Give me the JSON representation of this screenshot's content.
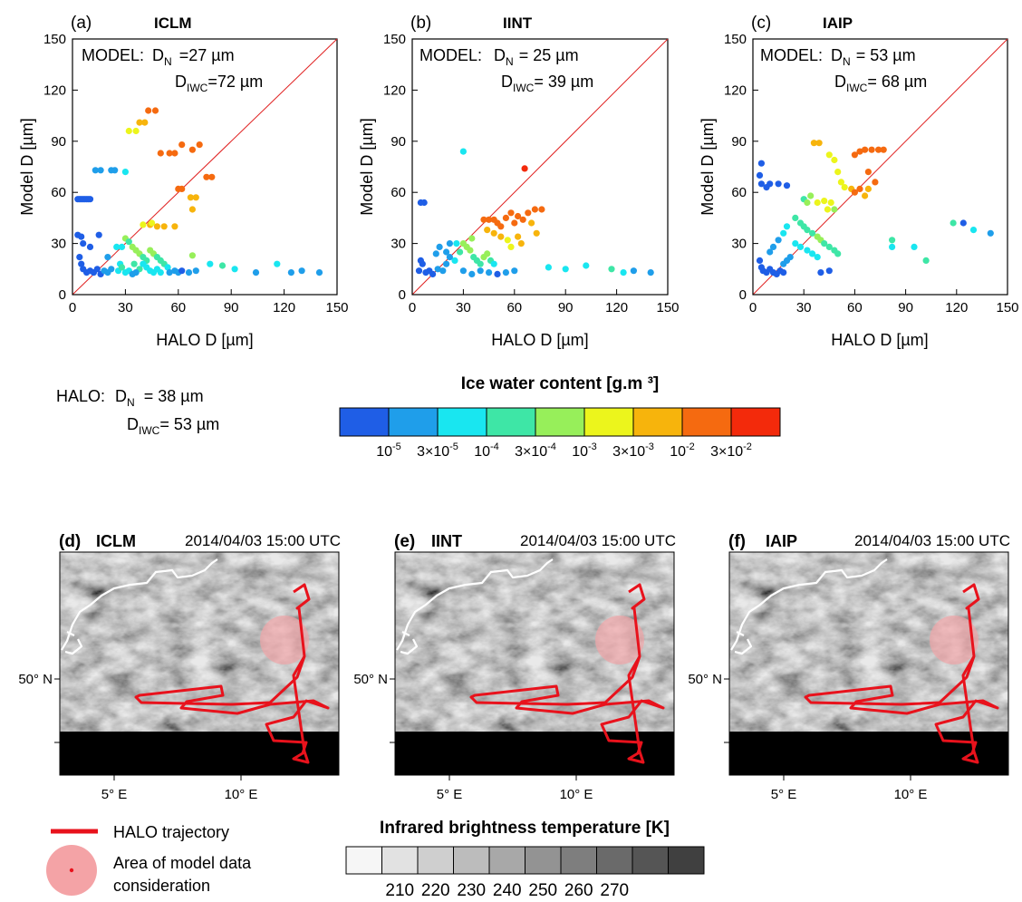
{
  "chart_data": [
    {
      "type": "scatter",
      "panel": "(a)",
      "title": "ICLM",
      "xlabel": "HALO D [µm]",
      "ylabel": "Model D [µm]",
      "xlim": [
        0,
        150
      ],
      "ylim": [
        0,
        150
      ],
      "ticks": [
        "0",
        "30",
        "60",
        "90",
        "120",
        "150"
      ],
      "model_label": "MODEL:",
      "dn_label": "D",
      "dn_sub": "N",
      "dn_value": "=27 µm",
      "diwc_label": "D",
      "diwc_sub": "IWC",
      "diwc_value": "=72 µm",
      "reference_line": "1:1",
      "points": [
        [
          3,
          56,
          0
        ],
        [
          4,
          56,
          0
        ],
        [
          5,
          56,
          0
        ],
        [
          6,
          56,
          0
        ],
        [
          7,
          56,
          0
        ],
        [
          8,
          56,
          0
        ],
        [
          9,
          56,
          0
        ],
        [
          10,
          56,
          0
        ],
        [
          3,
          35,
          0
        ],
        [
          5,
          34,
          0
        ],
        [
          6,
          30,
          0
        ],
        [
          4,
          22,
          0
        ],
        [
          5,
          18,
          0
        ],
        [
          6,
          15,
          0
        ],
        [
          8,
          13,
          0
        ],
        [
          10,
          14,
          0
        ],
        [
          12,
          13,
          0
        ],
        [
          14,
          15,
          0
        ],
        [
          16,
          12,
          0
        ],
        [
          18,
          14,
          1
        ],
        [
          20,
          13,
          1
        ],
        [
          22,
          15,
          1
        ],
        [
          13,
          73,
          1
        ],
        [
          16,
          73,
          1
        ],
        [
          22,
          73,
          1
        ],
        [
          24,
          73,
          1
        ],
        [
          30,
          72,
          2
        ],
        [
          15,
          35,
          0
        ],
        [
          10,
          28,
          0
        ],
        [
          20,
          22,
          1
        ],
        [
          25,
          28,
          2
        ],
        [
          28,
          28,
          2
        ],
        [
          27,
          18,
          2
        ],
        [
          32,
          96,
          5
        ],
        [
          36,
          96,
          5
        ],
        [
          38,
          101,
          6
        ],
        [
          41,
          101,
          6
        ],
        [
          43,
          108,
          7
        ],
        [
          47,
          108,
          7
        ],
        [
          50,
          83,
          7
        ],
        [
          55,
          83,
          7
        ],
        [
          58,
          83,
          7
        ],
        [
          62,
          88,
          7
        ],
        [
          68,
          85,
          7
        ],
        [
          72,
          88,
          7
        ],
        [
          76,
          69,
          7
        ],
        [
          79,
          69,
          7
        ],
        [
          60,
          62,
          7
        ],
        [
          62,
          62,
          7
        ],
        [
          67,
          57,
          6
        ],
        [
          70,
          57,
          6
        ],
        [
          68,
          50,
          6
        ],
        [
          40,
          41,
          5
        ],
        [
          44,
          41,
          6
        ],
        [
          48,
          40,
          6
        ],
        [
          52,
          40,
          6
        ],
        [
          58,
          40,
          6
        ],
        [
          45,
          42,
          5
        ],
        [
          30,
          33,
          4
        ],
        [
          32,
          31,
          3
        ],
        [
          34,
          28,
          4
        ],
        [
          36,
          26,
          4
        ],
        [
          38,
          24,
          4
        ],
        [
          40,
          22,
          3
        ],
        [
          42,
          20,
          3
        ],
        [
          44,
          26,
          4
        ],
        [
          46,
          24,
          4
        ],
        [
          48,
          22,
          3
        ],
        [
          50,
          20,
          3
        ],
        [
          52,
          18,
          3
        ],
        [
          54,
          16,
          2
        ],
        [
          35,
          18,
          3
        ],
        [
          38,
          15,
          3
        ],
        [
          40,
          18,
          2
        ],
        [
          42,
          16,
          2
        ],
        [
          44,
          14,
          2
        ],
        [
          46,
          13,
          2
        ],
        [
          48,
          15,
          2
        ],
        [
          50,
          13,
          2
        ],
        [
          55,
          13,
          1
        ],
        [
          58,
          14,
          1
        ],
        [
          60,
          13,
          1
        ],
        [
          62,
          14,
          0
        ],
        [
          66,
          13,
          1
        ],
        [
          70,
          14,
          1
        ],
        [
          68,
          23,
          4
        ],
        [
          78,
          18,
          2
        ],
        [
          85,
          17,
          3
        ],
        [
          92,
          15,
          2
        ],
        [
          104,
          13,
          1
        ],
        [
          116,
          18,
          2
        ],
        [
          124,
          13,
          1
        ],
        [
          130,
          14,
          1
        ],
        [
          140,
          13,
          1
        ],
        [
          26,
          14,
          2
        ],
        [
          28,
          16,
          3
        ],
        [
          30,
          13,
          2
        ],
        [
          32,
          14,
          2
        ],
        [
          34,
          12,
          1
        ],
        [
          36,
          13,
          1
        ]
      ]
    },
    {
      "type": "scatter",
      "panel": "(b)",
      "title": "IINT",
      "xlabel": "HALO D [µm]",
      "ylabel": "Model D [µm]",
      "xlim": [
        0,
        150
      ],
      "ylim": [
        0,
        150
      ],
      "ticks": [
        "0",
        "30",
        "60",
        "90",
        "120",
        "150"
      ],
      "model_label": "MODEL:",
      "dn_label": "D",
      "dn_sub": "N",
      "dn_value": "= 25 µm",
      "diwc_label": "D",
      "diwc_sub": "IWC",
      "diwc_value": "= 39 µm",
      "reference_line": "1:1",
      "points": [
        [
          5,
          54,
          0
        ],
        [
          7,
          54,
          0
        ],
        [
          30,
          84,
          2
        ],
        [
          66,
          74,
          8
        ],
        [
          45,
          44,
          7
        ],
        [
          48,
          44,
          7
        ],
        [
          50,
          42,
          7
        ],
        [
          52,
          40,
          7
        ],
        [
          55,
          45,
          7
        ],
        [
          58,
          48,
          7
        ],
        [
          62,
          46,
          7
        ],
        [
          65,
          44,
          7
        ],
        [
          68,
          48,
          7
        ],
        [
          72,
          50,
          7
        ],
        [
          76,
          50,
          7
        ],
        [
          60,
          42,
          7
        ],
        [
          70,
          42,
          6
        ],
        [
          73,
          36,
          6
        ],
        [
          64,
          30,
          6
        ],
        [
          62,
          34,
          6
        ],
        [
          44,
          38,
          6
        ],
        [
          42,
          44,
          7
        ],
        [
          48,
          36,
          6
        ],
        [
          52,
          34,
          6
        ],
        [
          56,
          32,
          5
        ],
        [
          58,
          28,
          5
        ],
        [
          30,
          30,
          4
        ],
        [
          32,
          28,
          4
        ],
        [
          34,
          26,
          4
        ],
        [
          36,
          22,
          3
        ],
        [
          38,
          20,
          3
        ],
        [
          40,
          18,
          3
        ],
        [
          42,
          22,
          4
        ],
        [
          44,
          24,
          4
        ],
        [
          46,
          20,
          3
        ],
        [
          48,
          18,
          2
        ],
        [
          35,
          33,
          4
        ],
        [
          28,
          25,
          3
        ],
        [
          25,
          20,
          2
        ],
        [
          22,
          22,
          1
        ],
        [
          20,
          18,
          1
        ],
        [
          18,
          14,
          1
        ],
        [
          15,
          15,
          1
        ],
        [
          12,
          12,
          0
        ],
        [
          10,
          14,
          0
        ],
        [
          8,
          13,
          0
        ],
        [
          5,
          20,
          0
        ],
        [
          4,
          14,
          0
        ],
        [
          6,
          18,
          0
        ],
        [
          14,
          24,
          1
        ],
        [
          16,
          28,
          1
        ],
        [
          22,
          30,
          1
        ],
        [
          20,
          25,
          1
        ],
        [
          26,
          30,
          2
        ],
        [
          30,
          14,
          1
        ],
        [
          35,
          12,
          1
        ],
        [
          40,
          14,
          1
        ],
        [
          45,
          13,
          1
        ],
        [
          50,
          12,
          0
        ],
        [
          55,
          13,
          1
        ],
        [
          60,
          14,
          1
        ],
        [
          80,
          16,
          2
        ],
        [
          90,
          15,
          2
        ],
        [
          102,
          17,
          2
        ],
        [
          117,
          15,
          3
        ],
        [
          124,
          13,
          2
        ],
        [
          130,
          14,
          1
        ],
        [
          140,
          13,
          1
        ]
      ]
    },
    {
      "type": "scatter",
      "panel": "(c)",
      "title": "IAIP",
      "xlabel": "HALO D [µm]",
      "ylabel": "Model D [µm]",
      "xlim": [
        0,
        150
      ],
      "ylim": [
        0,
        150
      ],
      "ticks": [
        "0",
        "30",
        "60",
        "90",
        "120",
        "150"
      ],
      "model_label": "MODEL:",
      "dn_label": "D",
      "dn_sub": "N",
      "dn_value": "= 53 µm",
      "diwc_label": "D",
      "diwc_sub": "IWC",
      "diwc_value": "= 68 µm",
      "reference_line": "1:1",
      "points": [
        [
          5,
          77,
          0
        ],
        [
          4,
          70,
          0
        ],
        [
          5,
          65,
          0
        ],
        [
          8,
          63,
          0
        ],
        [
          10,
          65,
          0
        ],
        [
          15,
          65,
          0
        ],
        [
          20,
          64,
          0
        ],
        [
          36,
          89,
          6
        ],
        [
          39,
          89,
          6
        ],
        [
          45,
          82,
          5
        ],
        [
          48,
          79,
          5
        ],
        [
          50,
          72,
          5
        ],
        [
          52,
          66,
          5
        ],
        [
          54,
          63,
          5
        ],
        [
          58,
          62,
          6
        ],
        [
          60,
          60,
          7
        ],
        [
          63,
          62,
          7
        ],
        [
          60,
          82,
          7
        ],
        [
          63,
          84,
          7
        ],
        [
          66,
          85,
          7
        ],
        [
          70,
          85,
          7
        ],
        [
          74,
          85,
          7
        ],
        [
          77,
          85,
          7
        ],
        [
          68,
          72,
          7
        ],
        [
          72,
          66,
          7
        ],
        [
          66,
          58,
          6
        ],
        [
          68,
          62,
          6
        ],
        [
          30,
          56,
          3
        ],
        [
          32,
          54,
          4
        ],
        [
          34,
          58,
          4
        ],
        [
          38,
          54,
          5
        ],
        [
          42,
          55,
          5
        ],
        [
          46,
          54,
          5
        ],
        [
          44,
          50,
          5
        ],
        [
          48,
          50,
          4
        ],
        [
          25,
          45,
          3
        ],
        [
          28,
          42,
          3
        ],
        [
          30,
          40,
          3
        ],
        [
          32,
          38,
          3
        ],
        [
          35,
          36,
          3
        ],
        [
          38,
          34,
          4
        ],
        [
          40,
          32,
          4
        ],
        [
          42,
          30,
          3
        ],
        [
          45,
          28,
          3
        ],
        [
          48,
          26,
          3
        ],
        [
          50,
          24,
          3
        ],
        [
          20,
          40,
          2
        ],
        [
          18,
          36,
          2
        ],
        [
          15,
          32,
          1
        ],
        [
          12,
          28,
          1
        ],
        [
          10,
          25,
          1
        ],
        [
          25,
          30,
          2
        ],
        [
          28,
          28,
          2
        ],
        [
          32,
          26,
          2
        ],
        [
          35,
          24,
          2
        ],
        [
          38,
          22,
          2
        ],
        [
          22,
          22,
          1
        ],
        [
          20,
          20,
          1
        ],
        [
          18,
          18,
          1
        ],
        [
          4,
          20,
          0
        ],
        [
          5,
          16,
          0
        ],
        [
          6,
          14,
          0
        ],
        [
          8,
          13,
          0
        ],
        [
          10,
          15,
          0
        ],
        [
          12,
          13,
          0
        ],
        [
          14,
          12,
          0
        ],
        [
          16,
          14,
          0
        ],
        [
          18,
          13,
          0
        ],
        [
          40,
          13,
          0
        ],
        [
          45,
          14,
          0
        ],
        [
          82,
          32,
          3
        ],
        [
          82,
          28,
          2
        ],
        [
          95,
          28,
          2
        ],
        [
          102,
          20,
          3
        ],
        [
          118,
          42,
          3
        ],
        [
          124,
          42,
          0
        ],
        [
          130,
          38,
          2
        ],
        [
          140,
          36,
          1
        ]
      ]
    }
  ],
  "halo_box": {
    "label": "HALO:",
    "dn_label": "D",
    "dn_sub": "N",
    "dn_value": "= 38 µm",
    "diwc_label": "D",
    "diwc_sub": "IWC",
    "diwc_value": "= 53 µm"
  },
  "iwc_colorbar": {
    "title": "Ice water content [g.m  ³]",
    "colors": [
      "#1f5ee6",
      "#1f9eea",
      "#19e6f0",
      "#3ee6a6",
      "#97ef5a",
      "#ecf51c",
      "#f7b40c",
      "#f56a10",
      "#f32a0b"
    ],
    "tick_labels": [
      {
        "base": "10",
        "exp": "-5"
      },
      {
        "base": "3×10",
        "exp": "-5"
      },
      {
        "base": "10",
        "exp": "-4"
      },
      {
        "base": "3×10",
        "exp": "-4"
      },
      {
        "base": "10",
        "exp": "-3"
      },
      {
        "base": "3×10",
        "exp": "-3"
      },
      {
        "base": "10",
        "exp": "-2"
      },
      {
        "base": "3×10",
        "exp": "-2"
      }
    ]
  },
  "maps": [
    {
      "panel": "(d)",
      "scheme": "ICLM",
      "time": "2014/04/03  15:00 UTC"
    },
    {
      "panel": "(e)",
      "scheme": "IINT",
      "time": "2014/04/03  15:00 UTC"
    },
    {
      "panel": "(f)",
      "scheme": "IAIP",
      "time": "2014/04/03  15:00 UTC"
    }
  ],
  "map_labels": {
    "lat": "50° N",
    "lon1": "5°  E",
    "lon2": "10°  E"
  },
  "map_legend": {
    "trajectory": "HALO trajectory",
    "area_line1": "Area of model data",
    "area_line2": "consideration",
    "trajectory_color": "#e8121c",
    "area_color": "#f4a3a6"
  },
  "tb_colorbar": {
    "title": "Infrared brightness temperature [K]",
    "colors": [
      "#f6f6f6",
      "#e2e2e2",
      "#cfcfcf",
      "#bcbcbc",
      "#a8a8a8",
      "#939393",
      "#7e7e7e",
      "#6a6a6a",
      "#555555",
      "#404040"
    ],
    "tick_labels": [
      "210",
      "220",
      "230",
      "240",
      "250",
      "260",
      "270"
    ]
  }
}
